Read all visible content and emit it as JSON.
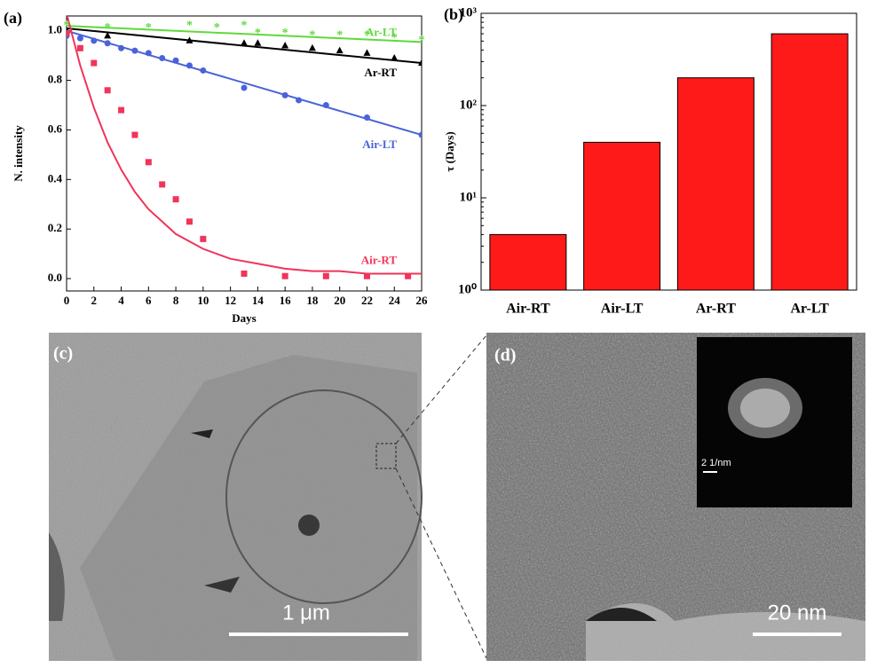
{
  "chart_data": [
    {
      "type": "scatter",
      "title": "(a)",
      "x_label": "Days",
      "y_label": "N. intensity",
      "xlim": [
        0,
        26
      ],
      "xticks": [
        0,
        2,
        4,
        6,
        8,
        10,
        12,
        14,
        16,
        18,
        20,
        22,
        24,
        26
      ],
      "ylim": [
        -0.05,
        1.06
      ],
      "yticks": [
        {
          "value": 0,
          "label": "0.0"
        },
        0.2,
        0.4,
        0.6,
        0.8,
        {
          "value": 1,
          "label": "1.0"
        }
      ],
      "series": [
        {
          "name": "Ar-LT",
          "color": "#5fd93c",
          "marker": "star",
          "x": [
            0,
            3,
            6,
            9,
            11,
            13,
            14,
            16,
            18,
            20,
            22,
            24,
            26
          ],
          "values": [
            1.02,
            1.01,
            1.01,
            1.02,
            1.01,
            1.02,
            0.99,
            0.99,
            0.98,
            0.98,
            0.98,
            0.97,
            0.96
          ],
          "fit_x": [
            0,
            26
          ],
          "fit": [
            1.02,
            0.955
          ]
        },
        {
          "name": "Ar-RT",
          "color": "#000000",
          "marker": "triangle",
          "x": [
            0,
            3,
            9,
            13,
            14,
            16,
            18,
            20,
            22,
            24,
            26
          ],
          "values": [
            1.0,
            0.98,
            0.96,
            0.95,
            0.95,
            0.94,
            0.93,
            0.92,
            0.91,
            0.89,
            0.87
          ],
          "fit_x": [
            0,
            26
          ],
          "fit": [
            1.01,
            0.87
          ]
        },
        {
          "name": "Air-LT",
          "color": "#4a63d8",
          "marker": "circle",
          "x": [
            0,
            1,
            2,
            3,
            4,
            5,
            6,
            7,
            8,
            9,
            10,
            13,
            16,
            17,
            19,
            22,
            26
          ],
          "values": [
            0.98,
            0.97,
            0.96,
            0.95,
            0.93,
            0.92,
            0.91,
            0.89,
            0.88,
            0.86,
            0.84,
            0.77,
            0.74,
            0.72,
            0.7,
            0.65,
            0.58
          ],
          "fit_x": [
            0,
            26
          ],
          "fit": [
            1.0,
            0.58
          ]
        },
        {
          "name": "Air-RT",
          "color": "#f0345a",
          "marker": "square",
          "x": [
            0,
            1,
            2,
            3,
            4,
            5,
            6,
            7,
            8,
            9,
            10,
            13,
            16,
            19,
            22,
            25
          ],
          "values": [
            0.99,
            0.93,
            0.87,
            0.76,
            0.68,
            0.58,
            0.47,
            0.38,
            0.32,
            0.23,
            0.16,
            0.02,
            0.01,
            0.01,
            0.01,
            0.01
          ],
          "fit_x": [
            0,
            1,
            2,
            3,
            4,
            5,
            6,
            7,
            8,
            10,
            12,
            14,
            16,
            18,
            20,
            22,
            24,
            26
          ],
          "fit": [
            1.07,
            0.86,
            0.69,
            0.55,
            0.44,
            0.35,
            0.28,
            0.23,
            0.18,
            0.12,
            0.08,
            0.06,
            0.04,
            0.03,
            0.03,
            0.02,
            0.02,
            0.02
          ]
        }
      ]
    },
    {
      "type": "bar",
      "title": "(b)",
      "y_label": "τ (Days)",
      "log_scale": true,
      "color": "#ff1a1a",
      "categories": [
        "Air-RT",
        "Air-LT",
        "Ar-RT",
        "Ar-LT"
      ],
      "values": [
        4,
        40,
        200,
        600
      ],
      "ylim": [
        1,
        1000
      ],
      "yticks": [
        {
          "value": 1,
          "label": "10⁰"
        },
        {
          "value": 10,
          "label": "10¹"
        },
        {
          "value": 100,
          "label": "10²"
        },
        {
          "value": 1000,
          "label": "10³"
        }
      ]
    }
  ],
  "images": [
    {
      "label": "(c)",
      "scale_bar": "1 μm"
    },
    {
      "label": "(d)",
      "scale_bar": "20 nm",
      "inset_scale_bar": "2 1/nm"
    }
  ]
}
